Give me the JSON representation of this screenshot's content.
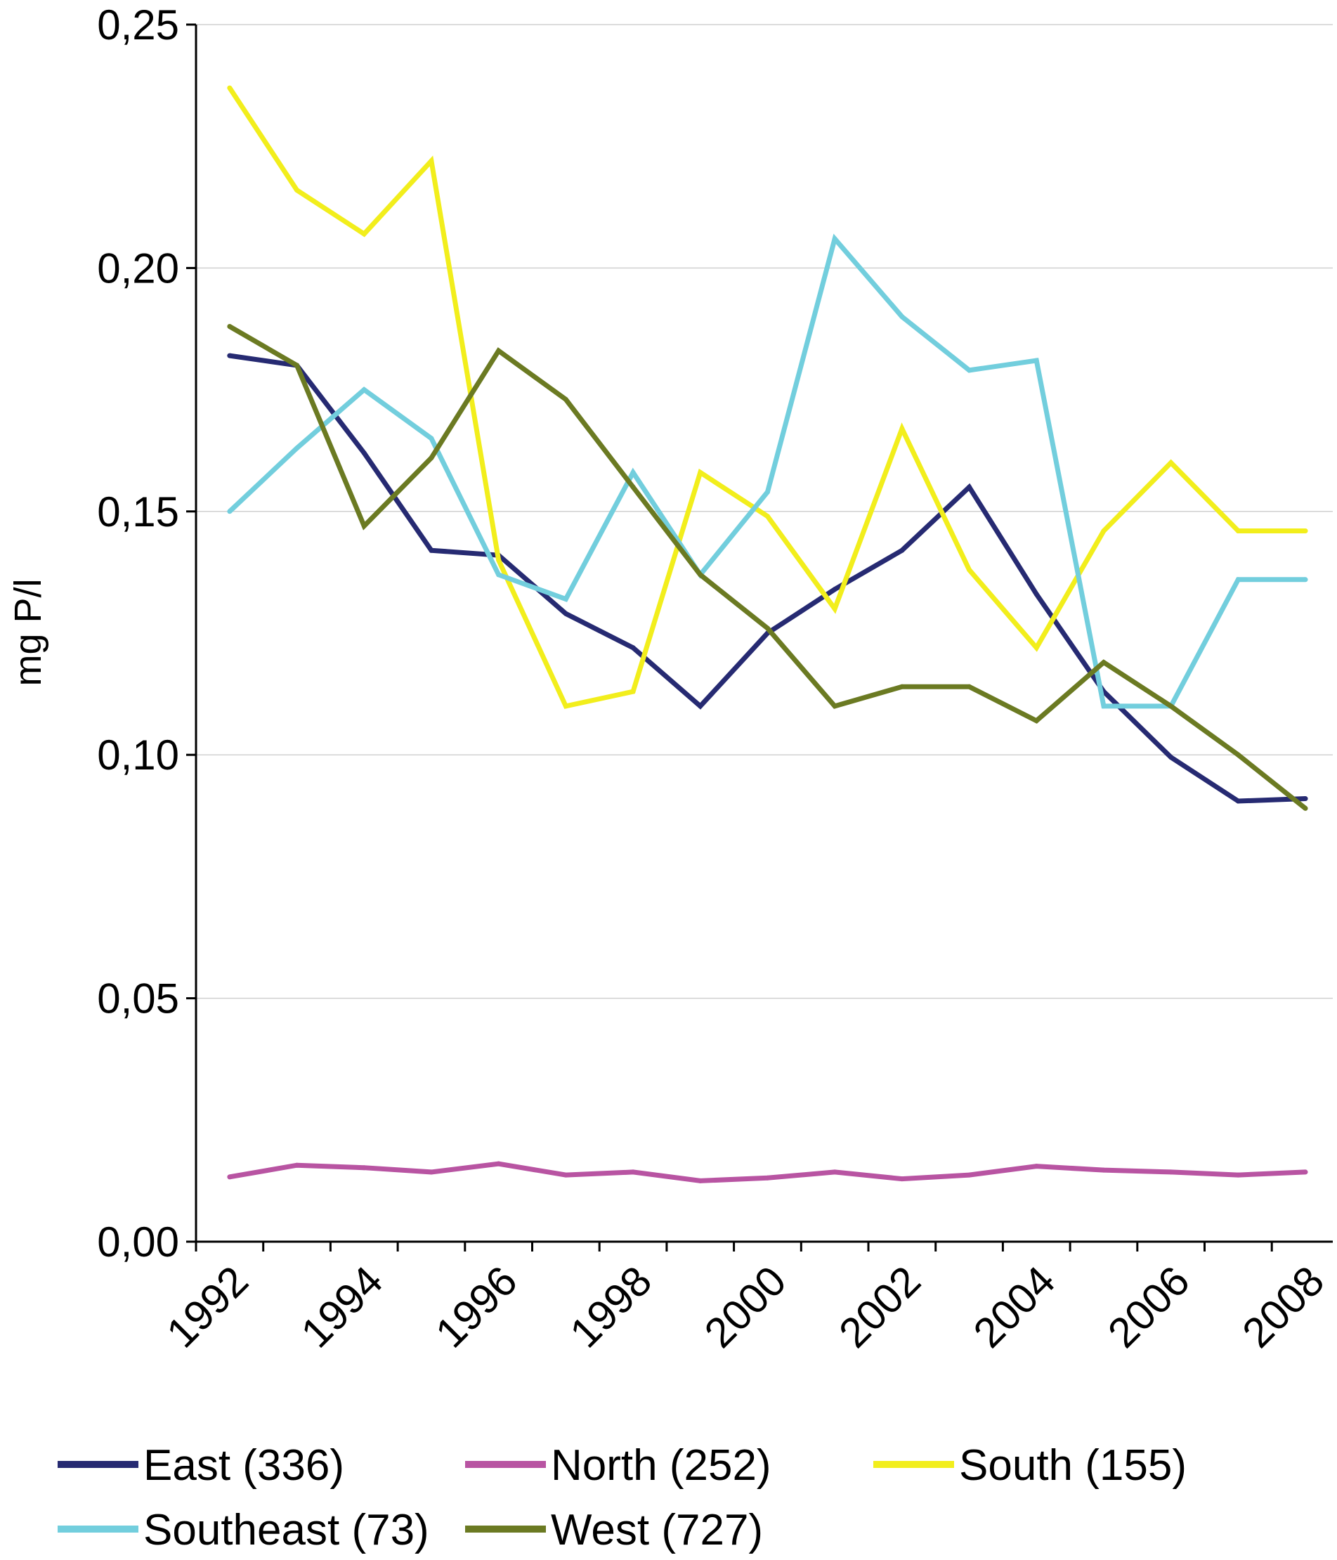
{
  "chart_data": {
    "type": "line",
    "title": "",
    "xlabel": "",
    "ylabel": "mg P/l",
    "ylim": [
      0,
      0.25
    ],
    "yticks": [
      "0,00",
      "0,05",
      "0,10",
      "0,15",
      "0,20",
      "0,25"
    ],
    "ytick_values": [
      0,
      0.05,
      0.1,
      0.15,
      0.2,
      0.25
    ],
    "x": [
      1992,
      1993,
      1994,
      1995,
      1996,
      1997,
      1998,
      1999,
      2000,
      2001,
      2002,
      2003,
      2004,
      2005,
      2006,
      2007,
      2008
    ],
    "xtick_labels": [
      "1992",
      "1994",
      "1996",
      "1998",
      "2000",
      "2002",
      "2004",
      "2006",
      "2008"
    ],
    "grid": "horizontal",
    "legend_position": "bottom",
    "series": [
      {
        "name": "East (336)",
        "color": "#262a72",
        "values": [
          0.182,
          0.18,
          0.162,
          0.142,
          0.141,
          0.129,
          0.122,
          0.11,
          0.125,
          0.134,
          0.142,
          0.155,
          0.133,
          0.113,
          0.0995,
          0.0905,
          0.091
        ]
      },
      {
        "name": "North (252)",
        "color": "#b854a2",
        "values": [
          0.0133,
          0.0157,
          0.0152,
          0.0143,
          0.016,
          0.0137,
          0.0143,
          0.0125,
          0.0131,
          0.0143,
          0.0129,
          0.0137,
          0.0155,
          0.0147,
          0.0143,
          0.0137,
          0.0143
        ]
      },
      {
        "name": "South (155)",
        "color": "#f2ee1c",
        "values": [
          0.237,
          0.216,
          0.207,
          0.222,
          0.14,
          0.11,
          0.113,
          0.158,
          0.149,
          0.13,
          0.167,
          0.138,
          0.122,
          0.146,
          0.16,
          0.146,
          0.146
        ]
      },
      {
        "name": "Southeast (73)",
        "color": "#72cedd",
        "values": [
          0.15,
          0.163,
          0.175,
          0.165,
          0.137,
          0.132,
          0.158,
          0.137,
          0.154,
          0.206,
          0.19,
          0.179,
          0.181,
          0.11,
          0.11,
          0.136,
          0.136
        ]
      },
      {
        "name": "West (727)",
        "color": "#6b7a22",
        "values": [
          0.188,
          0.18,
          0.147,
          0.161,
          0.183,
          0.173,
          0.155,
          0.137,
          0.126,
          0.11,
          0.114,
          0.114,
          0.107,
          0.119,
          0.11,
          0.1,
          0.089
        ]
      }
    ]
  }
}
